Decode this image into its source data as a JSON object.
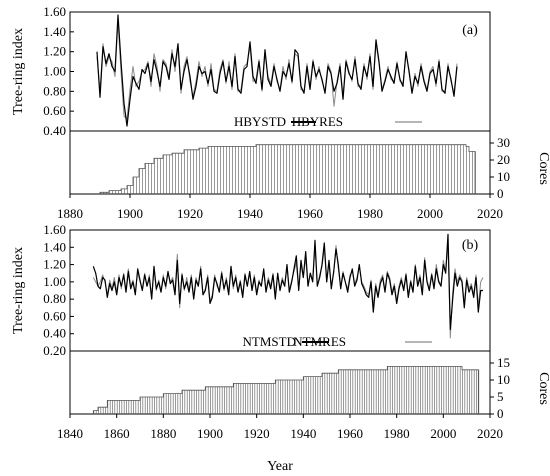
{
  "chart_data": [
    {
      "panel_label": "(a)",
      "type": "line",
      "ylabel": "Tree-ring index",
      "y2label": "Cores",
      "xlim": [
        1880,
        2020
      ],
      "x_ticks": [
        1880,
        1900,
        1920,
        1940,
        1960,
        1980,
        2000,
        2020
      ],
      "ylim": [
        0.4,
        1.6
      ],
      "y_ticks": [
        "0.40",
        "0.60",
        "0.80",
        "1.00",
        "1.20",
        "1.40",
        "1.60"
      ],
      "y2lim": [
        0,
        30
      ],
      "y2_ticks": [
        0,
        10,
        20,
        30
      ],
      "x_start": 1889,
      "series": [
        {
          "name": "HBYSTD",
          "color": "#000000",
          "values": [
            1.2,
            0.74,
            1.25,
            1.08,
            1.18,
            1.05,
            1.0,
            1.57,
            1.1,
            0.68,
            0.45,
            0.72,
            0.95,
            0.88,
            0.82,
            1.02,
            0.98,
            1.08,
            0.9,
            1.12,
            1.0,
            0.85,
            1.1,
            1.05,
            0.92,
            1.18,
            1.05,
            1.28,
            0.82,
            1.0,
            1.12,
            0.95,
            0.72,
            0.85,
            1.05,
            0.98,
            1.0,
            0.88,
            1.02,
            0.8,
            0.78,
            0.98,
            1.1,
            0.9,
            1.05,
            0.85,
            1.15,
            0.82,
            0.78,
            1.02,
            1.05,
            1.3,
            0.95,
            0.88,
            1.1,
            0.82,
            1.22,
            0.92,
            0.85,
            1.05,
            0.92,
            0.8,
            1.0,
            0.95,
            1.08,
            0.9,
            1.22,
            1.18,
            0.85,
            0.78,
            1.05,
            0.82,
            1.1,
            0.95,
            1.02,
            0.92,
            0.78,
            1.05,
            0.98,
            0.8,
            0.88,
            1.05,
            0.72,
            1.1,
            0.98,
            0.92,
            1.12,
            0.88,
            0.82,
            1.05,
            0.95,
            1.15,
            0.85,
            1.32,
            1.1,
            0.8,
            0.9,
            1.02,
            0.95,
            0.88,
            1.08,
            0.92,
            0.85,
            1.2,
            1.0,
            0.78,
            0.95,
            0.88,
            1.05,
            0.9,
            0.8,
            0.98,
            1.02,
            0.88,
            1.1,
            0.82,
            0.78,
            1.05,
            0.92,
            0.75,
            1.05
          ],
          "thick": true
        },
        {
          "name": "HBYRES",
          "color": "#8a8a8a",
          "values": [
            1.15,
            0.8,
            1.28,
            1.05,
            1.15,
            1.1,
            0.95,
            1.5,
            1.0,
            0.55,
            0.52,
            0.82,
            1.05,
            0.85,
            0.9,
            1.0,
            1.02,
            1.1,
            0.85,
            1.18,
            1.05,
            0.8,
            1.12,
            1.08,
            0.95,
            1.22,
            1.0,
            1.25,
            0.78,
            1.05,
            1.15,
            0.9,
            0.75,
            0.9,
            1.1,
            0.95,
            1.05,
            0.85,
            1.08,
            0.82,
            0.8,
            1.02,
            1.12,
            0.88,
            1.1,
            0.82,
            1.18,
            0.8,
            0.82,
            1.05,
            1.08,
            1.25,
            0.9,
            0.92,
            1.12,
            0.8,
            1.18,
            0.95,
            0.88,
            1.08,
            0.9,
            0.82,
            1.05,
            0.92,
            1.12,
            0.88,
            1.18,
            1.15,
            0.82,
            0.8,
            1.08,
            0.85,
            1.12,
            0.92,
            1.05,
            0.9,
            0.8,
            1.08,
            1.0,
            0.65,
            0.9,
            1.08,
            0.75,
            1.12,
            1.0,
            0.9,
            1.15,
            0.85,
            0.85,
            1.08,
            0.92,
            1.18,
            0.82,
            1.28,
            1.08,
            0.82,
            0.92,
            1.05,
            0.92,
            0.9,
            1.1,
            0.9,
            0.88,
            1.18,
            1.02,
            0.8,
            0.98,
            0.85,
            1.08,
            0.92,
            0.82,
            1.0,
            1.05,
            0.85,
            1.12,
            0.8,
            0.8,
            1.08,
            0.9,
            0.78,
            1.08
          ],
          "thick": false
        }
      ],
      "cores": [
        {
          "x": 1890,
          "v": 1
        },
        {
          "x": 1893,
          "v": 2
        },
        {
          "x": 1897,
          "v": 3
        },
        {
          "x": 1899,
          "v": 5
        },
        {
          "x": 1901,
          "v": 10
        },
        {
          "x": 1903,
          "v": 15
        },
        {
          "x": 1905,
          "v": 18
        },
        {
          "x": 1908,
          "v": 21
        },
        {
          "x": 1911,
          "v": 23
        },
        {
          "x": 1914,
          "v": 24
        },
        {
          "x": 1918,
          "v": 26
        },
        {
          "x": 1923,
          "v": 27
        },
        {
          "x": 1926,
          "v": 28
        },
        {
          "x": 1942,
          "v": 29
        },
        {
          "x": 2012,
          "v": 28
        },
        {
          "x": 2013,
          "v": 25
        }
      ],
      "cores_end": 2015
    },
    {
      "panel_label": "(b)",
      "type": "line",
      "xlabel": "Year",
      "ylabel": "Tree-ring index",
      "y2label": "Cores",
      "xlim": [
        1840,
        2020
      ],
      "x_ticks": [
        1840,
        1860,
        1880,
        1900,
        1920,
        1940,
        1960,
        1980,
        2000,
        2020
      ],
      "ylim": [
        0.2,
        1.6
      ],
      "y_ticks": [
        "0.20",
        "0.40",
        "0.60",
        "0.80",
        "1.00",
        "1.20",
        "1.40",
        "1.60"
      ],
      "y2lim": [
        0,
        15
      ],
      "y2_ticks": [
        0,
        5,
        10,
        15
      ],
      "x_start": 1850,
      "series": [
        {
          "name": "NTMSTD",
          "color": "#000000",
          "values": [
            1.18,
            1.1,
            0.95,
            0.92,
            1.05,
            1.02,
            0.82,
            0.98,
            0.9,
            1.0,
            0.85,
            1.05,
            0.95,
            1.08,
            0.88,
            1.12,
            0.92,
            1.0,
            0.85,
            1.15,
            1.02,
            0.9,
            1.08,
            0.95,
            1.05,
            0.8,
            1.18,
            0.92,
            1.0,
            0.88,
            1.05,
            0.95,
            1.12,
            0.98,
            1.02,
            0.85,
            1.25,
            0.75,
            1.08,
            0.92,
            1.0,
            0.88,
            1.05,
            0.8,
            1.02,
            0.95,
            1.15,
            0.85,
            0.9,
            1.05,
            0.75,
            0.82,
            1.05,
            0.98,
            0.88,
            1.1,
            0.92,
            1.02,
            0.85,
            1.18,
            0.95,
            1.05,
            0.88,
            1.0,
            0.82,
            1.08,
            0.95,
            1.12,
            0.9,
            1.05,
            0.85,
            1.0,
            0.95,
            1.15,
            0.88,
            1.02,
            0.92,
            1.08,
            0.8,
            1.1,
            0.9,
            1.02,
            0.95,
            1.2,
            0.88,
            1.0,
            1.15,
            1.3,
            0.9,
            1.25,
            1.05,
            1.35,
            0.95,
            1.1,
            1.0,
            1.48,
            0.95,
            1.05,
            1.2,
            1.45,
            1.0,
            1.25,
            0.92,
            1.12,
            1.38,
            1.2,
            0.92,
            1.1,
            1.0,
            0.88,
            1.05,
            1.15,
            0.95,
            1.02,
            1.2,
            0.98,
            0.92,
            0.85,
            0.82,
            1.0,
            0.65,
            0.95,
            0.82,
            0.98,
            1.05,
            0.88,
            1.1,
            1.02,
            0.85,
            0.95,
            0.75,
            0.92,
            1.02,
            0.9,
            1.08,
            0.82,
            1.0,
            0.88,
            1.18,
            0.95,
            1.05,
            0.85,
            1.25,
            1.0,
            0.9,
            1.08,
            0.92,
            1.15,
            1.0,
            0.95,
            1.2,
            1.1,
            1.55,
            0.45,
            0.8,
            1.1,
            0.95,
            1.05,
            1.0,
            0.7,
            1.02,
            0.88,
            0.95,
            0.82,
            1.05,
            0.65,
            0.9,
            0.9
          ],
          "thick": true
        },
        {
          "name": "NTMRES",
          "color": "#8a8a8a",
          "values": [
            1.05,
            1.0,
            0.95,
            1.0,
            1.08,
            1.0,
            0.85,
            1.02,
            0.92,
            1.05,
            0.88,
            1.08,
            0.92,
            1.1,
            0.9,
            1.15,
            0.95,
            1.02,
            0.88,
            1.12,
            1.0,
            0.92,
            1.1,
            0.95,
            1.08,
            0.82,
            1.15,
            0.9,
            1.02,
            0.9,
            1.08,
            0.92,
            1.1,
            1.0,
            1.05,
            0.88,
            1.32,
            0.7,
            1.1,
            0.9,
            1.05,
            0.9,
            1.08,
            0.82,
            1.05,
            0.95,
            1.18,
            0.85,
            0.92,
            1.08,
            0.78,
            0.85,
            1.08,
            0.95,
            0.9,
            1.12,
            0.9,
            1.05,
            0.88,
            1.15,
            0.92,
            1.08,
            0.9,
            1.02,
            0.85,
            1.1,
            0.95,
            1.1,
            0.92,
            1.08,
            0.88,
            1.02,
            0.95,
            1.12,
            0.9,
            1.05,
            0.95,
            1.1,
            0.85,
            1.08,
            0.92,
            1.05,
            0.95,
            1.18,
            0.9,
            1.02,
            1.12,
            1.22,
            0.92,
            1.2,
            1.05,
            1.28,
            0.95,
            1.1,
            1.02,
            1.4,
            0.95,
            1.08,
            1.18,
            1.38,
            1.0,
            1.22,
            0.95,
            1.1,
            1.42,
            1.15,
            0.95,
            1.12,
            1.0,
            0.92,
            1.08,
            1.12,
            0.98,
            1.05,
            1.18,
            1.0,
            0.95,
            0.88,
            0.85,
            1.02,
            0.72,
            0.98,
            0.85,
            1.02,
            1.08,
            0.9,
            1.12,
            1.05,
            0.88,
            0.98,
            0.78,
            0.95,
            1.05,
            0.92,
            1.1,
            0.85,
            1.02,
            0.9,
            1.2,
            0.98,
            1.08,
            0.88,
            1.28,
            1.02,
            0.92,
            1.1,
            0.95,
            1.2,
            1.02,
            0.95,
            1.25,
            1.12,
            1.45,
            0.35,
            0.88,
            1.15,
            1.0,
            1.08,
            1.02,
            0.75,
            1.05,
            0.92,
            0.98,
            0.85,
            1.08,
            0.72,
            1.0,
            1.05
          ],
          "thick": false
        }
      ],
      "cores": [
        {
          "x": 1850,
          "v": 1
        },
        {
          "x": 1852,
          "v": 2
        },
        {
          "x": 1856,
          "v": 4
        },
        {
          "x": 1870,
          "v": 5
        },
        {
          "x": 1880,
          "v": 6
        },
        {
          "x": 1888,
          "v": 7
        },
        {
          "x": 1898,
          "v": 8
        },
        {
          "x": 1910,
          "v": 9
        },
        {
          "x": 1928,
          "v": 10
        },
        {
          "x": 1940,
          "v": 11
        },
        {
          "x": 1948,
          "v": 12
        },
        {
          "x": 1955,
          "v": 13
        },
        {
          "x": 1976,
          "v": 14
        },
        {
          "x": 2008,
          "v": 13
        }
      ],
      "cores_end": 2015
    }
  ]
}
